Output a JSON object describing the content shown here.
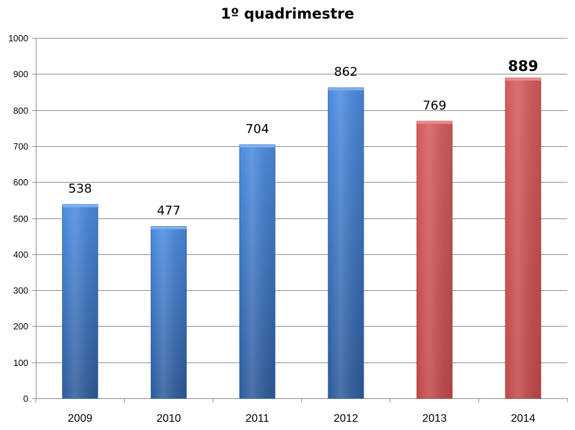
{
  "chart_data": {
    "type": "bar",
    "title": "1º quadrimestre",
    "categories": [
      "2009",
      "2010",
      "2011",
      "2012",
      "2013",
      "2014"
    ],
    "values": [
      538,
      477,
      704,
      862,
      769,
      889
    ],
    "data_labels": [
      "538",
      "477",
      "704",
      "862",
      "769",
      "889"
    ],
    "bar_colors": [
      "#3f7fd6",
      "#3f7fd6",
      "#3f7fd6",
      "#3f7fd6",
      "#cf5555",
      "#cf5555"
    ],
    "emphasized_label_index": 5,
    "y_ticks": [
      "0",
      "100",
      "200",
      "300",
      "400",
      "500",
      "600",
      "700",
      "800",
      "900",
      "1000"
    ],
    "ylim": [
      0,
      1000
    ],
    "grid": true,
    "legend": false,
    "xlabel": "",
    "ylabel": ""
  }
}
